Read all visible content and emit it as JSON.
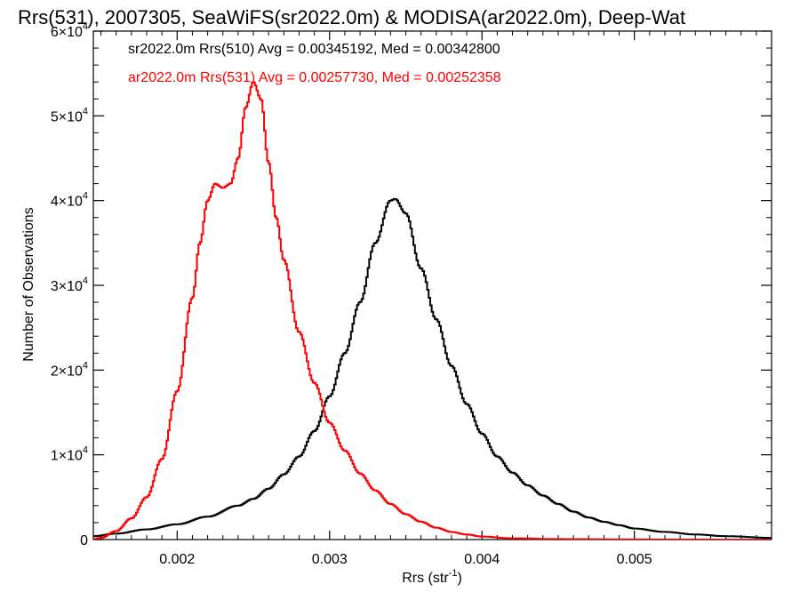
{
  "chart_data": {
    "type": "line",
    "title": "Rrs(531), 2007305, SeaWiFS(sr2022.0m) & MODISA(ar2022.0m), Deep-Wat",
    "xlabel_main": "Rrs (str",
    "xlabel_sup": "-1",
    "xlabel_close": ")",
    "ylabel": "Number of Observations",
    "xlim": [
      0.00145,
      0.0059
    ],
    "ylim": [
      0,
      60000
    ],
    "x_ticks": [
      {
        "value": 0.002,
        "label": "0.002"
      },
      {
        "value": 0.003,
        "label": "0.003"
      },
      {
        "value": 0.004,
        "label": "0.004"
      },
      {
        "value": 0.005,
        "label": "0.005"
      }
    ],
    "y_ticks": [
      {
        "value": 0,
        "label": "0"
      },
      {
        "value": 10000,
        "mantissa": "1",
        "times": "×10",
        "exp": "4"
      },
      {
        "value": 20000,
        "mantissa": "2",
        "times": "×10",
        "exp": "4"
      },
      {
        "value": 30000,
        "mantissa": "3",
        "times": "×10",
        "exp": "4"
      },
      {
        "value": 40000,
        "mantissa": "4",
        "times": "×10",
        "exp": "4"
      },
      {
        "value": 50000,
        "mantissa": "5",
        "times": "×10",
        "exp": "4"
      },
      {
        "value": 60000,
        "mantissa": "6",
        "times": "×10",
        "exp": "4"
      }
    ],
    "grid": false,
    "legend_placement": "top-left",
    "series": [
      {
        "name": "sr2022.0m Rrs(510) Avg = 0.00345192, Med = 0.00342800",
        "color": "#000000",
        "step": true,
        "points": [
          [
            0.00145,
            400
          ],
          [
            0.0016,
            700
          ],
          [
            0.0018,
            1200
          ],
          [
            0.002,
            1800
          ],
          [
            0.0022,
            2700
          ],
          [
            0.0024,
            4000
          ],
          [
            0.0025,
            4800
          ],
          [
            0.0026,
            6000
          ],
          [
            0.0027,
            7700
          ],
          [
            0.0028,
            9800
          ],
          [
            0.0029,
            12800
          ],
          [
            0.003,
            16900
          ],
          [
            0.0031,
            22000
          ],
          [
            0.0032,
            28000
          ],
          [
            0.0033,
            35000
          ],
          [
            0.0034,
            40000
          ],
          [
            0.00343,
            40200
          ],
          [
            0.0035,
            38500
          ],
          [
            0.0036,
            32000
          ],
          [
            0.0037,
            26000
          ],
          [
            0.0038,
            20500
          ],
          [
            0.0039,
            16000
          ],
          [
            0.004,
            12500
          ],
          [
            0.0041,
            9800
          ],
          [
            0.0042,
            7900
          ],
          [
            0.0043,
            6400
          ],
          [
            0.0044,
            5200
          ],
          [
            0.0045,
            4200
          ],
          [
            0.0046,
            3300
          ],
          [
            0.0047,
            2600
          ],
          [
            0.0048,
            2100
          ],
          [
            0.0049,
            1700
          ],
          [
            0.005,
            1300
          ],
          [
            0.0052,
            900
          ],
          [
            0.0054,
            600
          ],
          [
            0.0056,
            400
          ],
          [
            0.0059,
            200
          ]
        ]
      },
      {
        "name": "ar2022.0m Rrs(531) Avg = 0.00257730, Med = 0.00252358",
        "color": "#ff0000",
        "step": true,
        "points": [
          [
            0.00145,
            50
          ],
          [
            0.0015,
            200
          ],
          [
            0.0016,
            1000
          ],
          [
            0.0017,
            2500
          ],
          [
            0.0018,
            5000
          ],
          [
            0.0019,
            9500
          ],
          [
            0.002,
            17500
          ],
          [
            0.0021,
            28500
          ],
          [
            0.00215,
            35000
          ],
          [
            0.0022,
            40000
          ],
          [
            0.00225,
            42000
          ],
          [
            0.0023,
            41500
          ],
          [
            0.00235,
            42000
          ],
          [
            0.0024,
            45000
          ],
          [
            0.00245,
            51000
          ],
          [
            0.0025,
            54000
          ],
          [
            0.00255,
            52000
          ],
          [
            0.0026,
            44500
          ],
          [
            0.00265,
            38000
          ],
          [
            0.0027,
            33000
          ],
          [
            0.0028,
            24500
          ],
          [
            0.0029,
            18500
          ],
          [
            0.003,
            13800
          ],
          [
            0.0031,
            10500
          ],
          [
            0.0032,
            7800
          ],
          [
            0.0033,
            5800
          ],
          [
            0.0034,
            4200
          ],
          [
            0.0035,
            3000
          ],
          [
            0.0036,
            2100
          ],
          [
            0.0037,
            1400
          ],
          [
            0.0038,
            900
          ],
          [
            0.0039,
            600
          ],
          [
            0.004,
            350
          ],
          [
            0.0042,
            150
          ],
          [
            0.0045,
            60
          ],
          [
            0.005,
            20
          ],
          [
            0.0059,
            0
          ]
        ]
      }
    ]
  }
}
